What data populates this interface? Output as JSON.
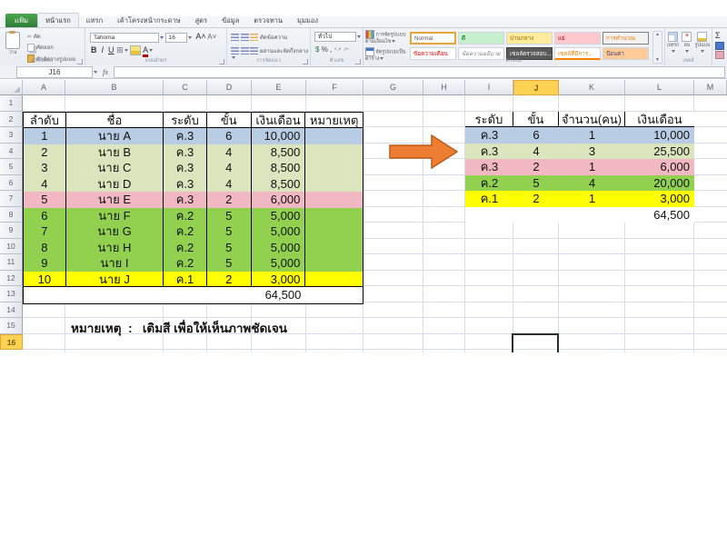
{
  "ribbon": {
    "tabs": [
      {
        "label": "แฟ้ม",
        "kind": "file"
      },
      {
        "label": "หน้าแรก",
        "kind": "active"
      },
      {
        "label": "แทรก",
        "kind": "normal"
      },
      {
        "label": "เค้าโครงหน้ากระดาษ",
        "kind": "normal"
      },
      {
        "label": "สูตร",
        "kind": "normal"
      },
      {
        "label": "ข้อมูล",
        "kind": "normal"
      },
      {
        "label": "ตรวจทาน",
        "kind": "normal"
      },
      {
        "label": "มุมมอง",
        "kind": "normal"
      }
    ],
    "clipboard": {
      "group": "คลิปบอร์ด",
      "paste": "วาง",
      "cut": "ตัด",
      "copy": "คัดลอก",
      "format_painter": "ตัวคัดวางรูปแบบ"
    },
    "font": {
      "group": "แบบอักษร",
      "name": "Tahoma",
      "size": "16",
      "bold": "B",
      "italic": "I",
      "underline": "U"
    },
    "alignment": {
      "group": "การจัดแนว",
      "wrap": "ตัดข้อความ",
      "merge": "ผสานและจัดกึ่งกลาง"
    },
    "number": {
      "group": "ตัวเลข",
      "format": "ทั่วไป",
      "percent": "%",
      "comma": ","
    },
    "styles": {
      "group": "ลักษณะ",
      "conditional": "การจัดรูปแบบตามเงื่อนไข",
      "as_table": "จัดรูปแบบเป็นตาราง",
      "gallery": [
        {
          "label": "Normal",
          "kind": "normal"
        },
        {
          "label": "ดี",
          "kind": "good"
        },
        {
          "label": "ปานกลาง",
          "kind": "neutral"
        },
        {
          "label": "แย่",
          "kind": "bad"
        },
        {
          "label": "การคำนวณ",
          "kind": "calc"
        },
        {
          "label": "ข้อความเตือน",
          "kind": "warn"
        },
        {
          "label": "ข้อความอธิบาย",
          "kind": "explain"
        },
        {
          "label": "เซลล์ตรวจสอบ...",
          "kind": "check"
        },
        {
          "label": "เซลล์ที่มีการ...",
          "kind": "linked"
        },
        {
          "label": "ป้อนค่า",
          "kind": "input"
        }
      ]
    },
    "cells": {
      "group": "เซลล์",
      "insert": "แทรก",
      "delete": "ลบ",
      "format": "รูปแบบ"
    },
    "editing": {
      "autosum": "Σ"
    }
  },
  "formula_bar": {
    "name_box": "J16",
    "fx": "fx"
  },
  "sheet": {
    "column_headers": [
      "A",
      "B",
      "C",
      "D",
      "E",
      "F",
      "G",
      "H",
      "I",
      "J",
      "K",
      "L",
      "M"
    ],
    "row_headers": [
      "1",
      "2",
      "3",
      "4",
      "5",
      "6",
      "7",
      "8",
      "9",
      "10",
      "11",
      "12",
      "13",
      "14",
      "15",
      "16"
    ],
    "selected_column": "J",
    "selected_row": "16",
    "selected_cell": "J16",
    "left_table": {
      "headers": [
        "ลำดับ",
        "ชื่อ",
        "ระดับ",
        "ขั้น",
        "เงินเดือน",
        "หมายเหตุ"
      ],
      "rows": [
        {
          "cells": [
            "1",
            "นาย A",
            "ค.3",
            "6",
            "10,000",
            ""
          ],
          "color": "blue"
        },
        {
          "cells": [
            "2",
            "นาย B",
            "ค.3",
            "4",
            "8,500",
            ""
          ],
          "color": "olive"
        },
        {
          "cells": [
            "3",
            "นาย C",
            "ค.3",
            "4",
            "8,500",
            ""
          ],
          "color": "olive"
        },
        {
          "cells": [
            "4",
            "นาย D",
            "ค.3",
            "4",
            "8,500",
            ""
          ],
          "color": "olive"
        },
        {
          "cells": [
            "5",
            "นาย E",
            "ค.3",
            "2",
            "6,000",
            ""
          ],
          "color": "pink"
        },
        {
          "cells": [
            "6",
            "นาย F",
            "ค.2",
            "5",
            "5,000",
            ""
          ],
          "color": "green"
        },
        {
          "cells": [
            "7",
            "นาย G",
            "ค.2",
            "5",
            "5,000",
            ""
          ],
          "color": "green"
        },
        {
          "cells": [
            "8",
            "นาย H",
            "ค.2",
            "5",
            "5,000",
            ""
          ],
          "color": "green"
        },
        {
          "cells": [
            "9",
            "นาย I",
            "ค.2",
            "5",
            "5,000",
            ""
          ],
          "color": "green"
        },
        {
          "cells": [
            "10",
            "นาย J",
            "ค.1",
            "2",
            "3,000",
            ""
          ],
          "color": "yellow"
        }
      ],
      "total": "64,500"
    },
    "right_table": {
      "headers": [
        "ระดับ",
        "ขั้น",
        "จำนวน(คน)",
        "เงินเดือน"
      ],
      "rows": [
        {
          "cells": [
            "ค.3",
            "6",
            "1",
            "10,000"
          ],
          "color": "blue"
        },
        {
          "cells": [
            "ค.3",
            "4",
            "3",
            "25,500"
          ],
          "color": "olive"
        },
        {
          "cells": [
            "ค.3",
            "2",
            "1",
            "6,000"
          ],
          "color": "pink"
        },
        {
          "cells": [
            "ค.2",
            "5",
            "4",
            "20,000"
          ],
          "color": "green"
        },
        {
          "cells": [
            "ค.1",
            "2",
            "1",
            "3,000"
          ],
          "color": "yellow"
        }
      ],
      "total": "64,500"
    },
    "note": "หมายเหตุ  :   เติมสี เพื่อให้เห็นภาพชัดเจน"
  },
  "colors": {
    "row_blue": "#b8cce4",
    "row_olive": "#dae5bd",
    "row_pink": "#f1b7c3",
    "row_green": "#92d050",
    "row_yellow": "#ffff00",
    "arrow_fill": "#ed7d31",
    "arrow_stroke": "#bc5b17",
    "selected_header": "#fcd253",
    "file_tab_green": "#2e7d36"
  }
}
